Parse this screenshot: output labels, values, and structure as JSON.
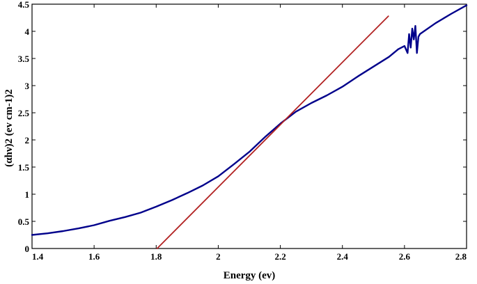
{
  "chart_data": {
    "type": "line",
    "title": "",
    "xlabel": "Energy (ev)",
    "ylabel": "(αhν)2 (ev cm-1)2",
    "xlim": [
      1.4,
      2.8
    ],
    "ylim": [
      0,
      4.5
    ],
    "xticks": [
      "1.4",
      "1.6",
      "1.8",
      "2",
      "2.2",
      "2.4",
      "2.6",
      "2.8"
    ],
    "yticks": [
      "0",
      "0.5",
      "1",
      "1.5",
      "2",
      "2.5",
      "3",
      "3.5",
      "4",
      "4.5"
    ],
    "grid": false,
    "legend": "none",
    "series": [
      {
        "color": "#00008b",
        "style": "measured curve",
        "x": [
          1.4,
          1.45,
          1.5,
          1.55,
          1.6,
          1.65,
          1.7,
          1.75,
          1.8,
          1.85,
          1.9,
          1.95,
          2.0,
          2.05,
          2.1,
          2.15,
          2.2,
          2.25,
          2.3,
          2.35,
          2.4,
          2.45,
          2.5,
          2.55,
          2.58,
          2.6,
          2.61,
          2.615,
          2.62,
          2.625,
          2.63,
          2.635,
          2.64,
          2.645,
          2.65,
          2.7,
          2.75,
          2.8
        ],
        "y": [
          0.25,
          0.28,
          0.32,
          0.37,
          0.43,
          0.51,
          0.58,
          0.66,
          0.77,
          0.89,
          1.02,
          1.16,
          1.33,
          1.55,
          1.78,
          2.05,
          2.3,
          2.52,
          2.68,
          2.82,
          2.98,
          3.17,
          3.35,
          3.53,
          3.67,
          3.73,
          3.6,
          3.95,
          3.7,
          4.05,
          3.85,
          4.1,
          3.6,
          3.9,
          3.95,
          4.15,
          4.32,
          4.48
        ]
      },
      {
        "color": "#b22222",
        "style": "linear fit",
        "x": [
          1.803,
          2.548
        ],
        "y": [
          0.0,
          4.28
        ]
      }
    ]
  }
}
